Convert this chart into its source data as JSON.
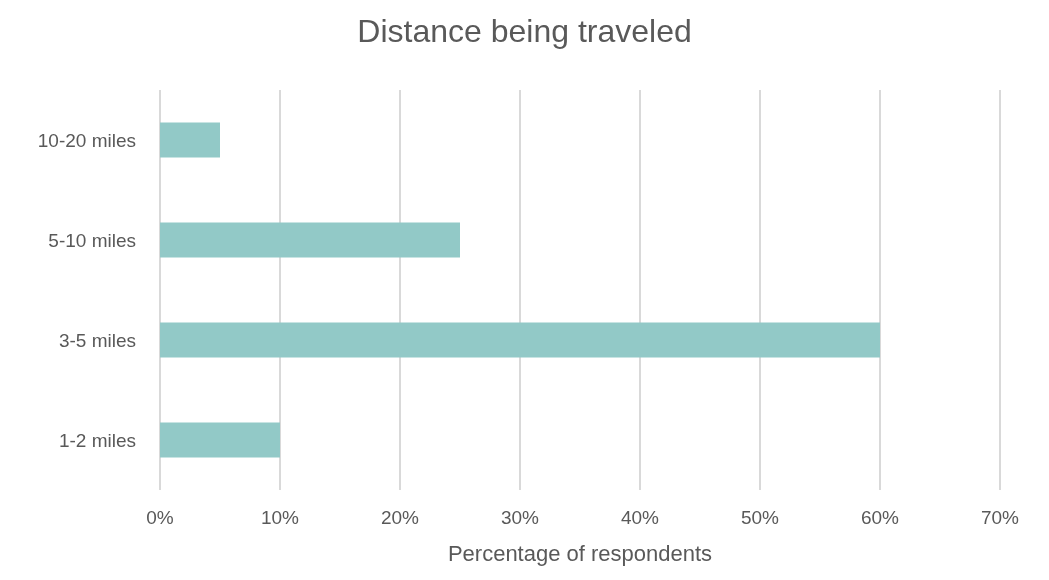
{
  "chart_data": {
    "type": "bar",
    "orientation": "horizontal",
    "title": "Distance being traveled",
    "xlabel": "Percentage of respondents",
    "categories": [
      "10-20 miles",
      "5-10 miles",
      "3-5 miles",
      "1-2 miles"
    ],
    "values": [
      5,
      25,
      60,
      10
    ],
    "color": "#92c9c7",
    "xlim": [
      0,
      70
    ],
    "xticks": [
      {
        "value": 0,
        "label": "0%"
      },
      {
        "value": 10,
        "label": "10%"
      },
      {
        "value": 20,
        "label": "20%"
      },
      {
        "value": 30,
        "label": "30%"
      },
      {
        "value": 40,
        "label": "40%"
      },
      {
        "value": 50,
        "label": "50%"
      },
      {
        "value": 60,
        "label": "60%"
      },
      {
        "value": 70,
        "label": "70%"
      }
    ],
    "grid": "x"
  }
}
